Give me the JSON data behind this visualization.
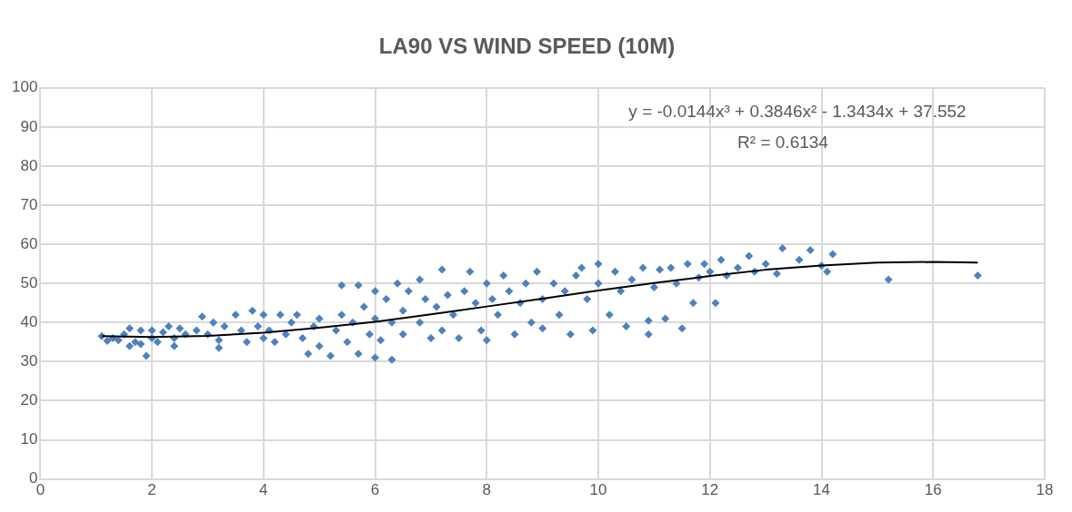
{
  "chart_data": {
    "type": "scatter",
    "title": "LA90 VS WIND SPEED (10M)",
    "xlim": [
      0,
      18
    ],
    "xticks": [
      0,
      2,
      4,
      6,
      8,
      10,
      12,
      14,
      16,
      18
    ],
    "ylim": [
      0,
      100
    ],
    "yticks": [
      0,
      10,
      20,
      30,
      40,
      50,
      60,
      70,
      80,
      90,
      100
    ],
    "grid": true,
    "legend": false,
    "marker": "diamond",
    "annotations": [
      "y = -0.0144x³ + 0.3846x² - 1.3434x + 37.552",
      "R² = 0.6134"
    ],
    "series": [
      {
        "color": "#4f81bd",
        "x": [
          1.1,
          1.2,
          1.3,
          1.4,
          1.5,
          1.6,
          1.6,
          1.7,
          1.8,
          1.8,
          1.9,
          2.0,
          2.0,
          2.1,
          2.2,
          2.3,
          2.4,
          2.4,
          2.5,
          2.6,
          2.8,
          2.9,
          3.0,
          3.1,
          3.2,
          3.2,
          3.3,
          3.5,
          3.6,
          3.7,
          3.8,
          3.9,
          4.0,
          4.0,
          4.1,
          4.2,
          4.3,
          4.4,
          4.5,
          4.6,
          4.7,
          4.8,
          4.9,
          5.0,
          5.0,
          5.2,
          5.3,
          5.4,
          5.4,
          5.5,
          5.6,
          5.7,
          5.7,
          5.8,
          5.9,
          6.0,
          6.0,
          6.0,
          6.1,
          6.2,
          6.3,
          6.3,
          6.4,
          6.5,
          6.5,
          6.6,
          6.8,
          6.8,
          6.9,
          7.0,
          7.1,
          7.2,
          7.2,
          7.3,
          7.4,
          7.5,
          7.6,
          7.7,
          7.8,
          7.9,
          8.0,
          8.0,
          8.1,
          8.2,
          8.3,
          8.4,
          8.5,
          8.6,
          8.7,
          8.8,
          8.9,
          9.0,
          9.0,
          9.2,
          9.3,
          9.4,
          9.5,
          9.6,
          9.7,
          9.8,
          9.9,
          10.0,
          10.0,
          10.2,
          10.3,
          10.4,
          10.5,
          10.6,
          10.8,
          10.9,
          10.9,
          11.0,
          11.1,
          11.2,
          11.3,
          11.4,
          11.5,
          11.6,
          11.7,
          11.8,
          11.9,
          12.0,
          12.1,
          12.2,
          12.3,
          12.5,
          12.7,
          12.8,
          13.0,
          13.2,
          13.3,
          13.6,
          13.8,
          14.0,
          14.1,
          14.2,
          15.2,
          16.8
        ],
        "values": [
          36.5,
          35.3,
          36,
          35.5,
          37,
          34,
          38.5,
          35,
          38,
          34.5,
          31.5,
          36,
          38,
          35,
          37.5,
          39,
          36,
          34,
          38.5,
          37,
          38,
          41.5,
          37,
          40,
          35.5,
          33.5,
          39,
          42,
          38,
          35,
          43,
          39,
          42,
          36,
          38,
          35,
          42,
          37,
          40,
          42,
          36,
          32,
          39,
          41,
          34,
          31.5,
          38,
          49.5,
          42,
          35,
          40,
          49.5,
          32,
          44,
          37,
          48,
          41,
          31,
          35.5,
          46,
          30.5,
          40,
          50,
          43,
          37,
          48,
          51,
          40,
          46,
          36,
          44,
          53.5,
          38,
          47,
          42,
          36,
          48,
          53,
          45,
          38,
          50,
          35.5,
          46,
          42,
          52,
          48,
          37,
          45,
          50,
          40,
          53,
          46,
          38.5,
          50,
          42,
          48,
          37,
          52,
          54,
          46,
          38,
          55,
          50,
          42,
          53,
          48,
          39,
          51,
          54,
          37,
          40.5,
          49,
          53.5,
          41,
          54,
          50,
          38.5,
          55,
          45,
          51.5,
          55,
          53,
          45,
          56,
          52,
          54,
          57,
          53,
          55,
          52.5,
          59,
          56,
          58.5,
          54.5,
          53,
          57.5,
          51,
          52
        ]
      },
      {
        "type": "line",
        "color": "#000000",
        "marker": "none",
        "line_style": "solid",
        "x": [
          1.1,
          2,
          3,
          4,
          5,
          6,
          7,
          8,
          9,
          10,
          11,
          12,
          13,
          14,
          15,
          16,
          16.8
        ],
        "values": [
          36.5,
          36.3,
          36.6,
          37.4,
          38.7,
          40.2,
          42.1,
          44.1,
          46.1,
          48.2,
          50.1,
          51.9,
          53.5,
          54.6,
          55.3,
          55.5,
          55.3
        ]
      }
    ]
  }
}
